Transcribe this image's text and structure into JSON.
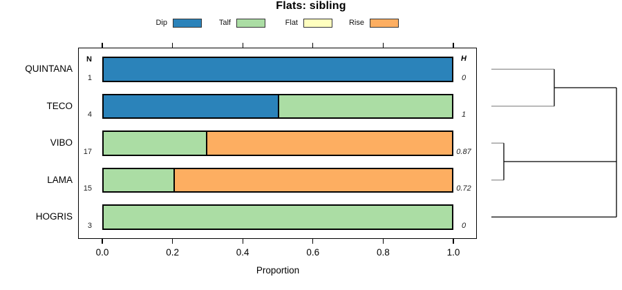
{
  "title": "Flats: sibling",
  "legend": {
    "items": [
      {
        "label": "Dip",
        "color": "#2b83ba"
      },
      {
        "label": "Talf",
        "color": "#abdda4"
      },
      {
        "label": "Flat",
        "color": "#ffffbf"
      },
      {
        "label": "Rise",
        "color": "#fdae61"
      }
    ]
  },
  "columns": {
    "n_header": "N",
    "h_header": "H"
  },
  "axis": {
    "label": "Proportion",
    "tick_labels": [
      "0.0",
      "0.2",
      "0.4",
      "0.6",
      "0.8",
      "1.0"
    ],
    "tick_values": [
      0,
      0.2,
      0.4,
      0.6,
      0.8,
      1.0
    ]
  },
  "chart_data": {
    "type": "bar",
    "stacked": true,
    "orientation": "horizontal",
    "title": "Flats: sibling",
    "xlabel": "Proportion",
    "xlim": [
      0,
      1
    ],
    "legend_position": "top",
    "categories": [
      "QUINTANA",
      "TECO",
      "VIBO",
      "LAMA",
      "HOGRIS"
    ],
    "n_values": [
      "1",
      "4",
      "17",
      "15",
      "3"
    ],
    "h_values": [
      "0",
      "1",
      "0.87",
      "0.72",
      "0"
    ],
    "series": [
      {
        "name": "Dip",
        "color": "#2b83ba",
        "values": [
          1.0,
          0.5,
          0.0,
          0.0,
          0.0
        ]
      },
      {
        "name": "Talf",
        "color": "#abdda4",
        "values": [
          0.0,
          0.5,
          0.294,
          0.2,
          1.0
        ]
      },
      {
        "name": "Flat",
        "color": "#ffffbf",
        "values": [
          0.0,
          0.0,
          0.0,
          0.0,
          0.0
        ]
      },
      {
        "name": "Rise",
        "color": "#fdae61",
        "values": [
          0.0,
          0.0,
          0.706,
          0.8,
          0.0
        ]
      }
    ]
  },
  "dendrogram": {
    "leaves": [
      "QUINTANA",
      "TECO",
      "VIBO",
      "LAMA",
      "HOGRIS"
    ],
    "merges": [
      {
        "rows": [
          0,
          1
        ],
        "height_note": "QUINTANA+TECO cluster"
      },
      {
        "rows": [
          2,
          3
        ],
        "height_note": "VIBO+LAMA cluster"
      }
    ],
    "root_members": [
      "merge0",
      "merge1",
      "HOGRIS"
    ]
  }
}
